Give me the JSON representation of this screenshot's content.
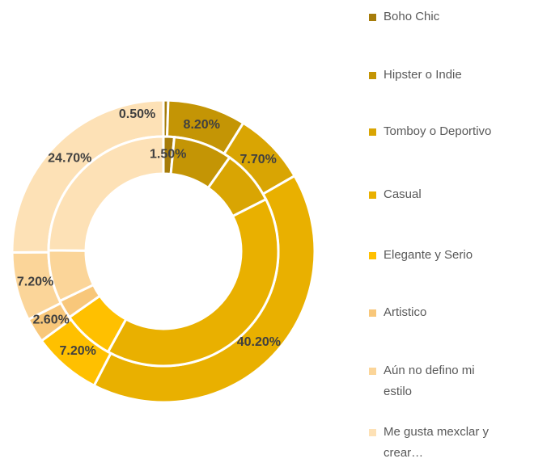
{
  "chart_data": {
    "type": "doughnut",
    "categories": [
      "Boho Chic",
      "Hipster o Indie",
      "Tomboy o Deportivo",
      "Casual",
      "Elegante y Serio",
      "Artistico",
      "Aún no defino mi estilo",
      "Me gusta mexclar y crear…"
    ],
    "colors": [
      "#a67c0a",
      "#c49505",
      "#d9a503",
      "#e9b000",
      "#ffc000",
      "#f8c77a",
      "#fbd599",
      "#fde1b6"
    ],
    "series": [
      {
        "values": [
          0.5,
          8.2,
          7.7,
          40.2,
          7.2,
          2.6,
          7.2,
          24.7
        ],
        "value_labels": [
          "0.50%",
          "8.20%",
          "7.70%",
          "40.20%",
          "7.20%",
          "2.60%",
          "7.20%",
          "24.70%"
        ]
      },
      {
        "values": [
          1.5,
          8.2,
          7.7,
          40.2,
          7.2,
          2.6,
          7.2,
          24.7
        ],
        "value_labels": [
          "1.50%",
          null,
          null,
          null,
          null,
          null,
          null,
          null
        ]
      }
    ]
  }
}
